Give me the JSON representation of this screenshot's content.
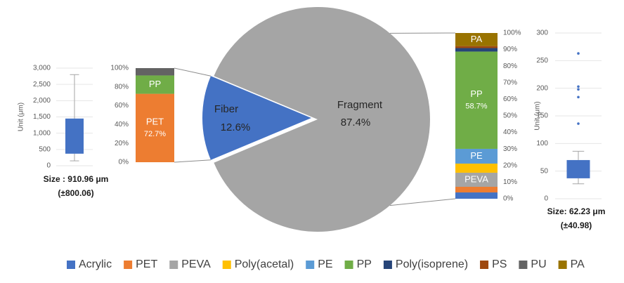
{
  "chart_data": [
    {
      "type": "pie",
      "categories": [
        "Fiber",
        "Fragment"
      ],
      "values": [
        12.6,
        87.4
      ],
      "value_labels": [
        "12.6%",
        "87.4%"
      ],
      "colors": [
        "#4472c4",
        "#a5a5a5"
      ]
    },
    {
      "type": "stacked-bar",
      "ylim": [
        0,
        100
      ],
      "yticks": [
        {
          "value": 0,
          "label": "0%"
        },
        {
          "value": 20,
          "label": "20%"
        },
        {
          "value": 40,
          "label": "40%"
        },
        {
          "value": 60,
          "label": "60%"
        },
        {
          "value": 80,
          "label": "80%"
        },
        {
          "value": 100,
          "label": "100%"
        }
      ],
      "series": [
        {
          "name": "PET",
          "color": "#ed7d31",
          "values": [
            72.7
          ],
          "value_labels": [
            "72.7%"
          ]
        },
        {
          "name": "PP",
          "color": "#70ad47",
          "values": [
            19.5
          ]
        },
        {
          "name": "PU",
          "color": "#636363",
          "values": [
            7.8
          ]
        }
      ]
    },
    {
      "type": "stacked-bar",
      "ylim": [
        0,
        100
      ],
      "yticks": [
        {
          "value": 0,
          "label": "0%"
        },
        {
          "value": 10,
          "label": "10%"
        },
        {
          "value": 20,
          "label": "20%"
        },
        {
          "value": 30,
          "label": "30%"
        },
        {
          "value": 40,
          "label": "40%"
        },
        {
          "value": 50,
          "label": "50%"
        },
        {
          "value": 60,
          "label": "60%"
        },
        {
          "value": 70,
          "label": "70%"
        },
        {
          "value": 80,
          "label": "80%"
        },
        {
          "value": 90,
          "label": "90%"
        },
        {
          "value": 100,
          "label": "100%"
        }
      ],
      "series": [
        {
          "name": "Acrylic",
          "color": "#4472c4",
          "values": [
            3.8
          ]
        },
        {
          "name": "PET",
          "color": "#ed7d31",
          "values": [
            3.4
          ]
        },
        {
          "name": "PEVA",
          "color": "#a5a5a5",
          "values": [
            8.5
          ]
        },
        {
          "name": "Poly(acetal)",
          "color": "#ffc000",
          "values": [
            5.5
          ]
        },
        {
          "name": "PE",
          "color": "#5b9bd5",
          "values": [
            8.9
          ]
        },
        {
          "name": "PP",
          "color": "#70ad47",
          "values": [
            58.7
          ],
          "value_labels": [
            "58.7%"
          ]
        },
        {
          "name": "Poly(isoprene)",
          "color": "#264478",
          "values": [
            2.1
          ]
        },
        {
          "name": "PS",
          "color": "#9e480e",
          "values": [
            1.2
          ]
        },
        {
          "name": "PA",
          "color": "#997300",
          "values": [
            7.9
          ]
        }
      ]
    },
    {
      "type": "box",
      "ylabel": "Unit (μm)",
      "ylim": [
        0,
        3000
      ],
      "grid": true,
      "yticks": [
        {
          "value": 0,
          "label": "0"
        },
        {
          "value": 500,
          "label": "500"
        },
        {
          "value": 1000,
          "label": "1,000"
        },
        {
          "value": 1500,
          "label": "1,500"
        },
        {
          "value": 2000,
          "label": "2,000"
        },
        {
          "value": 2500,
          "label": "2,500"
        },
        {
          "value": 3000,
          "label": "3,000"
        }
      ],
      "whisker_low": 150,
      "q1": 370,
      "q3": 1450,
      "whisker_high": 2800,
      "outliers": [],
      "color": "#4472c4",
      "caption": [
        "Size : 910.96 μm",
        "(±800.06)"
      ]
    },
    {
      "type": "box",
      "ylabel": "Unit (μm)",
      "ylim": [
        0,
        300
      ],
      "grid": true,
      "yticks": [
        0,
        50,
        100,
        150,
        200,
        250,
        300
      ],
      "whisker_low": 27,
      "q1": 37,
      "q3": 70,
      "whisker_high": 86,
      "outliers": [
        136,
        184,
        198,
        203,
        263
      ],
      "color": "#4472c4",
      "caption": [
        "Size: 62.23 μm",
        "(±40.98)"
      ]
    }
  ],
  "legend": [
    {
      "name": "Acrylic",
      "color": "#4472c4"
    },
    {
      "name": "PET",
      "color": "#ed7d31"
    },
    {
      "name": "PEVA",
      "color": "#a5a5a5"
    },
    {
      "name": "Poly(acetal)",
      "color": "#ffc000"
    },
    {
      "name": "PE",
      "color": "#5b9bd5"
    },
    {
      "name": "PP",
      "color": "#70ad47"
    },
    {
      "name": "Poly(isoprene)",
      "color": "#264478"
    },
    {
      "name": "PS",
      "color": "#9e480e"
    },
    {
      "name": "PU",
      "color": "#636363"
    },
    {
      "name": "PA",
      "color": "#997300"
    }
  ]
}
